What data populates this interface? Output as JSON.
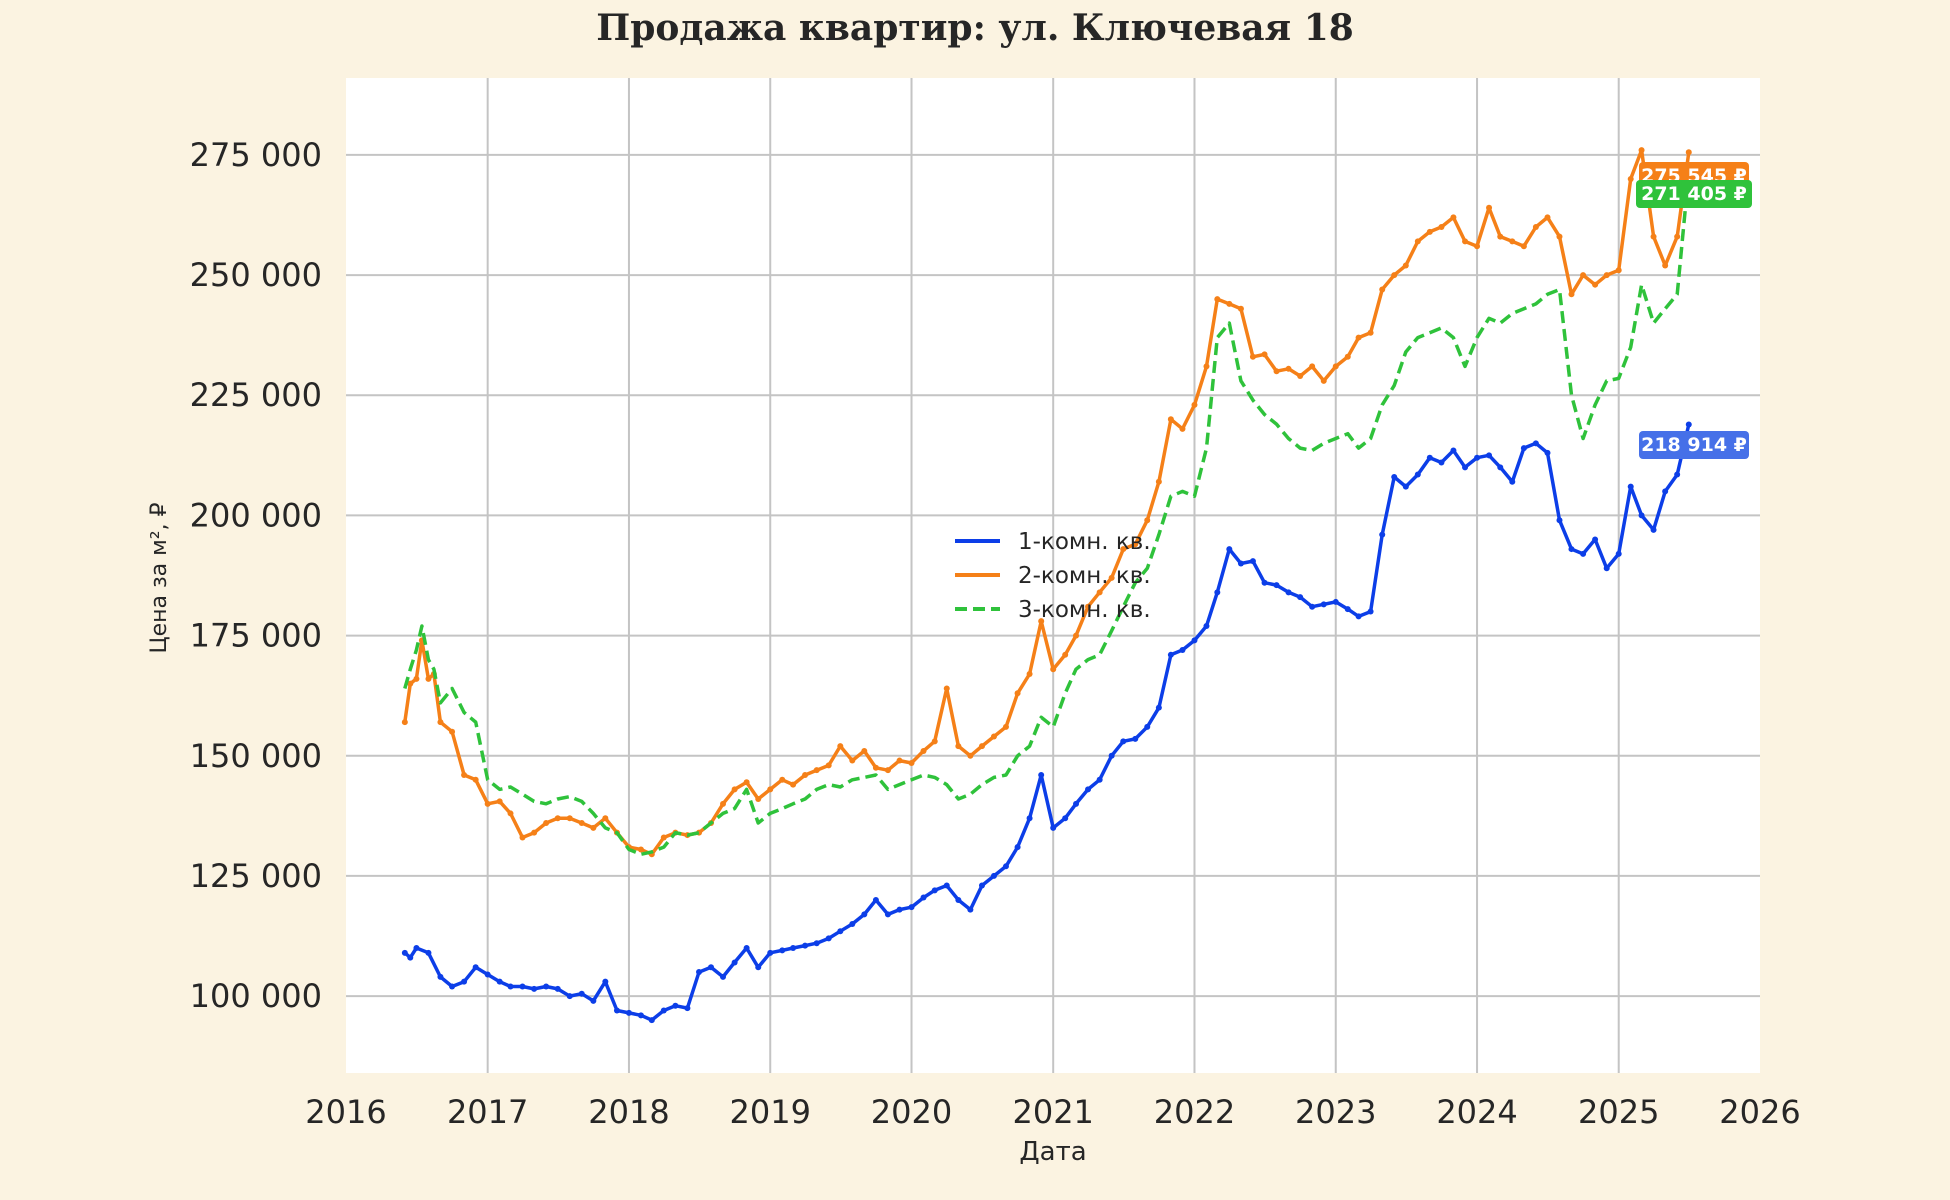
{
  "chart_data": {
    "type": "line",
    "title": "Продажа квартир: ул. Ключевая 18",
    "xlabel": "Дата",
    "ylabel": "Цена за м², ₽",
    "xlim": [
      "2016-01-01",
      "2026-01-01"
    ],
    "ylim": [
      84000,
      291000
    ],
    "x_ticks": [
      "2016",
      "2017",
      "2018",
      "2019",
      "2020",
      "2021",
      "2022",
      "2023",
      "2024",
      "2025",
      "2026"
    ],
    "y_ticks": [
      100000,
      125000,
      150000,
      175000,
      200000,
      225000,
      250000,
      275000
    ],
    "y_tick_labels": [
      "100 000",
      "125 000",
      "150 000",
      "175 000",
      "200 000",
      "225 000",
      "250 000",
      "275 000"
    ],
    "grid": true,
    "legend": "center",
    "series": [
      {
        "name": "1-комн. кв.",
        "color": "#0c3ee8",
        "style": "solid-markers",
        "x": [
          "2016-06-01",
          "2016-06-15",
          "2016-07-01",
          "2016-08-01",
          "2016-09-01",
          "2016-10-01",
          "2016-11-01",
          "2016-12-01",
          "2017-01-01",
          "2017-02-01",
          "2017-03-01",
          "2017-04-01",
          "2017-05-01",
          "2017-06-01",
          "2017-07-01",
          "2017-08-01",
          "2017-09-01",
          "2017-10-01",
          "2017-11-01",
          "2017-12-01",
          "2018-01-01",
          "2018-02-01",
          "2018-03-01",
          "2018-04-01",
          "2018-05-01",
          "2018-06-01",
          "2018-07-01",
          "2018-08-01",
          "2018-09-01",
          "2018-10-01",
          "2018-11-01",
          "2018-12-01",
          "2019-01-01",
          "2019-02-01",
          "2019-03-01",
          "2019-04-01",
          "2019-05-01",
          "2019-06-01",
          "2019-07-01",
          "2019-08-01",
          "2019-09-01",
          "2019-10-01",
          "2019-11-01",
          "2019-12-01",
          "2020-01-01",
          "2020-02-01",
          "2020-03-01",
          "2020-04-01",
          "2020-05-01",
          "2020-06-01",
          "2020-07-01",
          "2020-08-01",
          "2020-09-01",
          "2020-10-01",
          "2020-11-01",
          "2020-12-01",
          "2021-01-01",
          "2021-02-01",
          "2021-03-01",
          "2021-04-01",
          "2021-05-01",
          "2021-06-01",
          "2021-07-01",
          "2021-08-01",
          "2021-09-01",
          "2021-10-01",
          "2021-11-01",
          "2021-12-01",
          "2022-01-01",
          "2022-02-01",
          "2022-03-01",
          "2022-04-01",
          "2022-05-01",
          "2022-06-01",
          "2022-07-01",
          "2022-08-01",
          "2022-09-01",
          "2022-10-01",
          "2022-11-01",
          "2022-12-01",
          "2023-01-01",
          "2023-02-01",
          "2023-03-01",
          "2023-04-01",
          "2023-05-01",
          "2023-06-01",
          "2023-07-01",
          "2023-08-01",
          "2023-09-01",
          "2023-10-01",
          "2023-11-01",
          "2023-12-01",
          "2024-01-01",
          "2024-02-01",
          "2024-03-01",
          "2024-04-01",
          "2024-05-01",
          "2024-06-01",
          "2024-07-01",
          "2024-08-01",
          "2024-09-01",
          "2024-10-01",
          "2024-11-01",
          "2024-12-01",
          "2025-01-01",
          "2025-02-01",
          "2025-03-01",
          "2025-04-01",
          "2025-05-01",
          "2025-06-01",
          "2025-07-01"
        ],
        "y": [
          109000,
          108000,
          110000,
          109000,
          104000,
          102000,
          103000,
          106000,
          104500,
          103000,
          102000,
          102000,
          101500,
          102000,
          101500,
          100000,
          100500,
          99000,
          103000,
          97000,
          96500,
          96000,
          95000,
          97000,
          98000,
          97500,
          105000,
          106000,
          104000,
          107000,
          110000,
          106000,
          109000,
          109500,
          110000,
          110500,
          111000,
          112000,
          113500,
          115000,
          117000,
          120000,
          117000,
          118000,
          118500,
          120500,
          122000,
          123000,
          120000,
          118000,
          123000,
          125000,
          127000,
          131000,
          137000,
          146000,
          135000,
          137000,
          140000,
          143000,
          145000,
          150000,
          153000,
          153500,
          156000,
          160000,
          171000,
          172000,
          174000,
          177000,
          184000,
          193000,
          190000,
          190500,
          186000,
          185500,
          184000,
          183000,
          181000,
          181500,
          182000,
          180500,
          179000,
          180000,
          196000,
          208000,
          206000,
          208500,
          212000,
          211000,
          213500,
          210000,
          212000,
          212500,
          210000,
          207000,
          214000,
          215000,
          213000,
          199000,
          193000,
          192000,
          195000,
          189000,
          192000,
          206000,
          200000,
          197000,
          205000,
          208500,
          218914
        ]
      },
      {
        "name": "2-комн. кв.",
        "color": "#f58018",
        "style": "solid-markers",
        "x": [
          "2016-06-01",
          "2016-06-15",
          "2016-07-01",
          "2016-07-15",
          "2016-08-01",
          "2016-08-15",
          "2016-09-01",
          "2016-10-01",
          "2016-11-01",
          "2016-12-01",
          "2017-01-01",
          "2017-02-01",
          "2017-03-01",
          "2017-04-01",
          "2017-05-01",
          "2017-06-01",
          "2017-07-01",
          "2017-08-01",
          "2017-09-01",
          "2017-10-01",
          "2017-11-01",
          "2017-12-01",
          "2018-01-01",
          "2018-02-01",
          "2018-03-01",
          "2018-04-01",
          "2018-05-01",
          "2018-06-01",
          "2018-07-01",
          "2018-08-01",
          "2018-09-01",
          "2018-10-01",
          "2018-11-01",
          "2018-12-01",
          "2019-01-01",
          "2019-02-01",
          "2019-03-01",
          "2019-04-01",
          "2019-05-01",
          "2019-06-01",
          "2019-07-01",
          "2019-08-01",
          "2019-09-01",
          "2019-10-01",
          "2019-11-01",
          "2019-12-01",
          "2020-01-01",
          "2020-02-01",
          "2020-03-01",
          "2020-04-01",
          "2020-05-01",
          "2020-06-01",
          "2020-07-01",
          "2020-08-01",
          "2020-09-01",
          "2020-10-01",
          "2020-11-01",
          "2020-12-01",
          "2021-01-01",
          "2021-02-01",
          "2021-03-01",
          "2021-04-01",
          "2021-05-01",
          "2021-06-01",
          "2021-07-01",
          "2021-08-01",
          "2021-09-01",
          "2021-10-01",
          "2021-11-01",
          "2021-12-01",
          "2022-01-01",
          "2022-02-01",
          "2022-03-01",
          "2022-04-01",
          "2022-05-01",
          "2022-06-01",
          "2022-07-01",
          "2022-08-01",
          "2022-09-01",
          "2022-10-01",
          "2022-11-01",
          "2022-12-01",
          "2023-01-01",
          "2023-02-01",
          "2023-03-01",
          "2023-04-01",
          "2023-05-01",
          "2023-06-01",
          "2023-07-01",
          "2023-08-01",
          "2023-09-01",
          "2023-10-01",
          "2023-11-01",
          "2023-12-01",
          "2024-01-01",
          "2024-02-01",
          "2024-03-01",
          "2024-04-01",
          "2024-05-01",
          "2024-06-01",
          "2024-07-01",
          "2024-08-01",
          "2024-09-01",
          "2024-10-01",
          "2024-11-01",
          "2024-12-01",
          "2025-01-01",
          "2025-02-01",
          "2025-03-01",
          "2025-04-01",
          "2025-05-01",
          "2025-06-01",
          "2025-07-01"
        ],
        "y": [
          157000,
          165000,
          166000,
          174000,
          166000,
          167000,
          157000,
          155000,
          146000,
          145000,
          140000,
          140500,
          138000,
          133000,
          134000,
          136000,
          137000,
          137000,
          136000,
          135000,
          137000,
          134000,
          131000,
          130500,
          129500,
          133000,
          134000,
          133500,
          134000,
          136000,
          140000,
          143000,
          144500,
          141000,
          143000,
          145000,
          144000,
          146000,
          147000,
          148000,
          152000,
          149000,
          151000,
          147500,
          147000,
          149000,
          148500,
          151000,
          153000,
          164000,
          152000,
          150000,
          152000,
          154000,
          156000,
          163000,
          167000,
          178000,
          168000,
          171000,
          175000,
          181000,
          184000,
          187000,
          193000,
          194000,
          199000,
          207000,
          220000,
          218000,
          223000,
          231000,
          245000,
          244000,
          243000,
          233000,
          233500,
          230000,
          230500,
          229000,
          231000,
          228000,
          231000,
          233000,
          237000,
          238000,
          247000,
          250000,
          252000,
          257000,
          259000,
          260000,
          262000,
          257000,
          256000,
          264000,
          258000,
          257000,
          256000,
          260000,
          262000,
          258000,
          246000,
          250000,
          248000,
          250000,
          251000,
          270000,
          276000,
          258000,
          252000,
          258000,
          275545
        ]
      },
      {
        "name": "3-комн. кв.",
        "color": "#2fc23b",
        "style": "dashed",
        "x": [
          "2016-06-01",
          "2016-06-15",
          "2016-07-01",
          "2016-07-15",
          "2016-08-01",
          "2016-08-15",
          "2016-09-01",
          "2016-10-01",
          "2016-11-01",
          "2016-12-01",
          "2017-01-01",
          "2017-02-01",
          "2017-03-01",
          "2017-04-01",
          "2017-05-01",
          "2017-06-01",
          "2017-07-01",
          "2017-08-01",
          "2017-09-01",
          "2017-10-01",
          "2017-11-01",
          "2017-12-01",
          "2018-01-01",
          "2018-02-01",
          "2018-03-01",
          "2018-04-01",
          "2018-05-01",
          "2018-06-01",
          "2018-07-01",
          "2018-08-01",
          "2018-09-01",
          "2018-10-01",
          "2018-11-01",
          "2018-12-01",
          "2019-01-01",
          "2019-02-01",
          "2019-03-01",
          "2019-04-01",
          "2019-05-01",
          "2019-06-01",
          "2019-07-01",
          "2019-08-01",
          "2019-09-01",
          "2019-10-01",
          "2019-11-01",
          "2019-12-01",
          "2020-01-01",
          "2020-02-01",
          "2020-03-01",
          "2020-04-01",
          "2020-05-01",
          "2020-06-01",
          "2020-07-01",
          "2020-08-01",
          "2020-09-01",
          "2020-10-01",
          "2020-11-01",
          "2020-12-01",
          "2021-01-01",
          "2021-02-01",
          "2021-03-01",
          "2021-04-01",
          "2021-05-01",
          "2021-06-01",
          "2021-07-01",
          "2021-08-01",
          "2021-09-01",
          "2021-10-01",
          "2021-11-01",
          "2021-12-01",
          "2022-01-01",
          "2022-02-01",
          "2022-03-01",
          "2022-04-01",
          "2022-05-01",
          "2022-06-01",
          "2022-07-01",
          "2022-08-01",
          "2022-09-01",
          "2022-10-01",
          "2022-11-01",
          "2022-12-01",
          "2023-01-01",
          "2023-02-01",
          "2023-03-01",
          "2023-04-01",
          "2023-05-01",
          "2023-06-01",
          "2023-07-01",
          "2023-08-01",
          "2023-09-01",
          "2023-10-01",
          "2023-11-01",
          "2023-12-01",
          "2024-01-01",
          "2024-02-01",
          "2024-03-01",
          "2024-04-01",
          "2024-05-01",
          "2024-06-01",
          "2024-07-01",
          "2024-08-01",
          "2024-09-01",
          "2024-10-01",
          "2024-11-01",
          "2024-12-01",
          "2025-01-01",
          "2025-02-01",
          "2025-03-01",
          "2025-04-01",
          "2025-05-01",
          "2025-06-01",
          "2025-07-01"
        ],
        "y": [
          164000,
          168000,
          172000,
          177000,
          170000,
          168000,
          161000,
          164000,
          159000,
          157000,
          145000,
          143000,
          143500,
          142000,
          140500,
          140000,
          141000,
          141500,
          140500,
          138000,
          135000,
          134000,
          130500,
          129500,
          130000,
          131000,
          134000,
          133500,
          134000,
          136000,
          138000,
          139000,
          143000,
          136000,
          138000,
          139000,
          140000,
          141000,
          143000,
          144000,
          143500,
          145000,
          145500,
          146000,
          143000,
          144000,
          145000,
          146000,
          145500,
          144000,
          141000,
          142000,
          144000,
          145500,
          146000,
          150000,
          152000,
          158000,
          156000,
          163000,
          168000,
          170000,
          171000,
          176000,
          181000,
          186000,
          189000,
          196000,
          204000,
          205000,
          204000,
          214000,
          237000,
          240000,
          228000,
          224000,
          221000,
          219000,
          216000,
          214000,
          213500,
          215000,
          216000,
          217000,
          214000,
          216000,
          223000,
          227000,
          234000,
          237000,
          238000,
          239000,
          237000,
          231000,
          237000,
          241000,
          240000,
          242000,
          243000,
          244000,
          246000,
          247000,
          225000,
          216000,
          223000,
          228000,
          228500,
          235000,
          248000,
          240000,
          243000,
          246000,
          271405
        ]
      }
    ],
    "end_labels": [
      "218 914 ₽",
      "275 545 ₽",
      "271 405 ₽"
    ]
  }
}
